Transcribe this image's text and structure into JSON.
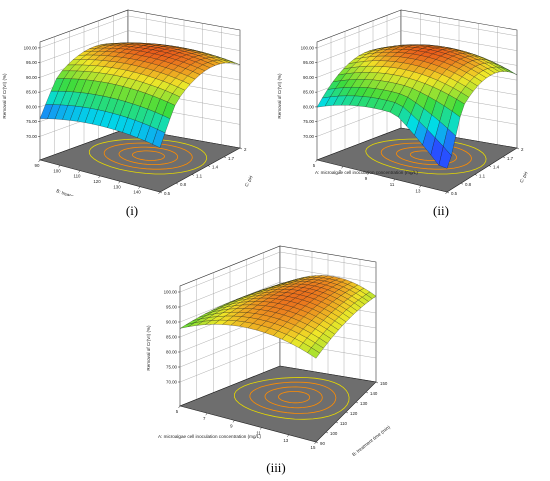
{
  "captions": [
    "(i)",
    "(ii)",
    "(iii)"
  ],
  "colors": {
    "floor": "#6e6e6e",
    "contour": "#ff8c00",
    "contour_outer": "#e6d900",
    "grid": "#9a9a9a",
    "edge": "#000000"
  },
  "chart_data": [
    {
      "type": "surface",
      "zlabel": "Removal of Cr(VI) (%)",
      "xlabel": "B: treatment time (min)",
      "ylabel": "C: pH",
      "x": {
        "ticks": [
          90,
          100,
          110,
          120,
          130,
          140,
          150
        ]
      },
      "y": {
        "ticks": [
          0.5,
          0.8,
          1.1,
          1.4,
          1.7,
          2
        ]
      },
      "zlim": [
        70,
        100
      ],
      "zticks": [
        "70.00",
        "75.00",
        "80.00",
        "85.00",
        "90.00",
        "95.00",
        "100.00"
      ],
      "max_removal": 97
    },
    {
      "type": "surface",
      "zlabel": "Removal of Cr(VI) (%)",
      "xlabel": "A: microalgae cell inoculation concentration (mg/L)",
      "ylabel": "C: pH",
      "x": {
        "ticks": [
          5,
          7,
          9,
          11,
          13,
          15
        ]
      },
      "y": {
        "ticks": [
          0.5,
          0.8,
          1.1,
          1.4,
          1.7,
          2
        ]
      },
      "zlim": [
        70,
        100
      ],
      "zticks": [
        "70.00",
        "75.00",
        "80.00",
        "85.00",
        "90.00",
        "95.00",
        "100.00"
      ],
      "max_removal": 97
    },
    {
      "type": "surface",
      "zlabel": "Removal of Cr(VI) (%)",
      "xlabel": "A: microalgae cell inoculation concentration (mg/L)",
      "ylabel": "B: treatment time (min)",
      "x": {
        "ticks": [
          5,
          7,
          9,
          11,
          13,
          15
        ]
      },
      "y": {
        "ticks": [
          90,
          100,
          110,
          120,
          130,
          140,
          150
        ]
      },
      "zlim": [
        70,
        100
      ],
      "zticks": [
        "70.00",
        "75.00",
        "80.00",
        "85.00",
        "90.00",
        "95.00",
        "100.00"
      ],
      "max_removal": 97
    }
  ]
}
